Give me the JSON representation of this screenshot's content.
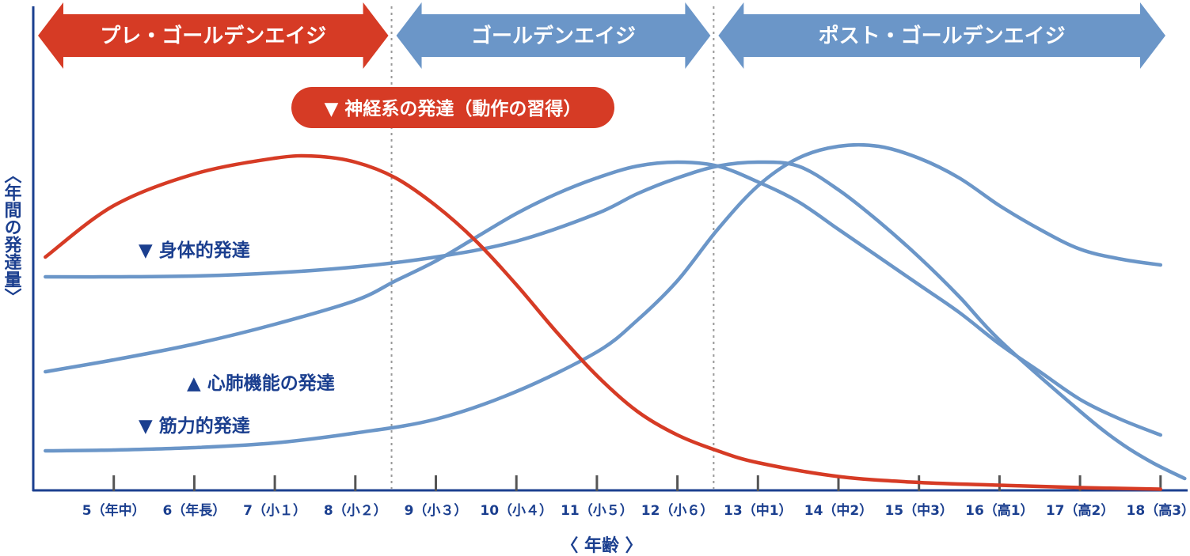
{
  "chart_data": {
    "type": "line",
    "ylabel": "〈年間の発達量〉",
    "xlabel": "〈 年齢 〉",
    "x_ticks": [
      "5（年中）",
      "6（年長）",
      "7（小１）",
      "8（小２）",
      "9（小３）",
      "10（小４）",
      "11（小５）",
      "12（小６）",
      "13（中1）",
      "14（中2）",
      "15（中3）",
      "16（高1）",
      "17（高2）",
      "18（高3）"
    ],
    "x_range": [
      4,
      18
    ],
    "y_range": [
      0,
      100
    ],
    "grid": false,
    "phases": [
      {
        "label": "プレ・ゴールデンエイジ",
        "from": 4,
        "to": 8.45,
        "color": "#d63b25"
      },
      {
        "label": "ゴールデンエイジ",
        "from": 8.45,
        "to": 12.45,
        "color": "#6b96c8"
      },
      {
        "label": "ポスト・ゴールデンエイジ",
        "from": 12.45,
        "to": 18.1,
        "color": "#6b96c8"
      }
    ],
    "phase_dividers": [
      8.45,
      12.45
    ],
    "series": [
      {
        "name": "▼ 神経系の発達（動作の習得）",
        "color": "#d63b25",
        "label_style": "pill",
        "points": [
          [
            4.15,
            59
          ],
          [
            5,
            72
          ],
          [
            6,
            80
          ],
          [
            7,
            84
          ],
          [
            7.5,
            84.5
          ],
          [
            8,
            83
          ],
          [
            8.5,
            79
          ],
          [
            9,
            72
          ],
          [
            9.5,
            63
          ],
          [
            10,
            52
          ],
          [
            10.5,
            40
          ],
          [
            11,
            29
          ],
          [
            11.5,
            20
          ],
          [
            12,
            14
          ],
          [
            12.5,
            10
          ],
          [
            13,
            7
          ],
          [
            14,
            3.5
          ],
          [
            15,
            2
          ],
          [
            16,
            1.3
          ],
          [
            17,
            0.7
          ],
          [
            18,
            0.3
          ]
        ]
      },
      {
        "name": "▼ 身体的発達",
        "color": "#6b96c8",
        "points": [
          [
            4.15,
            54
          ],
          [
            5,
            54
          ],
          [
            6,
            54.2
          ],
          [
            7,
            55
          ],
          [
            8,
            56.5
          ],
          [
            9,
            59
          ],
          [
            10,
            63
          ],
          [
            11,
            70
          ],
          [
            11.5,
            75
          ],
          [
            12,
            79
          ],
          [
            12.5,
            82
          ],
          [
            13,
            83
          ],
          [
            13.5,
            82
          ],
          [
            14,
            76
          ],
          [
            14.5,
            68
          ],
          [
            15,
            59
          ],
          [
            15.5,
            49
          ],
          [
            16,
            38
          ],
          [
            17,
            20
          ],
          [
            17.5,
            12
          ],
          [
            17.9,
            7
          ],
          [
            18.3,
            3
          ]
        ]
      },
      {
        "name": "▲ 心肺機能の発達",
        "color": "#6b96c8",
        "points": [
          [
            4.15,
            30
          ],
          [
            5,
            33
          ],
          [
            6,
            37
          ],
          [
            7,
            42
          ],
          [
            8,
            48
          ],
          [
            8.5,
            53
          ],
          [
            9,
            58
          ],
          [
            9.5,
            64
          ],
          [
            10,
            70
          ],
          [
            10.5,
            75
          ],
          [
            11,
            79
          ],
          [
            11.5,
            82
          ],
          [
            12,
            83
          ],
          [
            12.5,
            82
          ],
          [
            13,
            78
          ],
          [
            13.5,
            73
          ],
          [
            14,
            66
          ],
          [
            14.5,
            59
          ],
          [
            15,
            52
          ],
          [
            15.5,
            45
          ],
          [
            16,
            37
          ],
          [
            16.5,
            30
          ],
          [
            17,
            23
          ],
          [
            17.5,
            18
          ],
          [
            18,
            14
          ]
        ]
      },
      {
        "name": "▼ 筋力的発達",
        "color": "#6b96c8",
        "points": [
          [
            4.15,
            10
          ],
          [
            5,
            10.2
          ],
          [
            6,
            10.8
          ],
          [
            7,
            12
          ],
          [
            8,
            14.5
          ],
          [
            9,
            18
          ],
          [
            10,
            25
          ],
          [
            11,
            35
          ],
          [
            11.5,
            43
          ],
          [
            12,
            53
          ],
          [
            12.5,
            66
          ],
          [
            13,
            77
          ],
          [
            13.5,
            84
          ],
          [
            14,
            87
          ],
          [
            14.5,
            87
          ],
          [
            15,
            84
          ],
          [
            15.5,
            79
          ],
          [
            16,
            72
          ],
          [
            16.5,
            66
          ],
          [
            17,
            61
          ],
          [
            17.5,
            58.5
          ],
          [
            18,
            57
          ]
        ]
      }
    ]
  },
  "colors": {
    "red": "#d63b25",
    "blue": "#6b96c8",
    "text_blue": "#1b3f8f",
    "axis": "#1b3f8f",
    "tick": "#555555"
  }
}
